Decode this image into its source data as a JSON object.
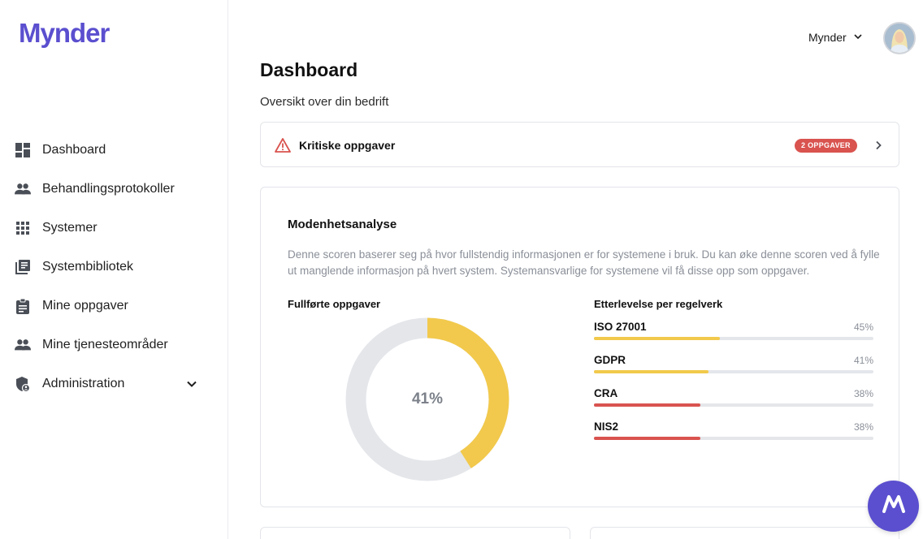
{
  "app": {
    "logo_text": "Mynder",
    "brand_color": "#5b4fcf"
  },
  "sidebar": {
    "items": [
      {
        "label": "Dashboard",
        "icon": "dashboard-icon"
      },
      {
        "label": "Behandlingsprotokoller",
        "icon": "people-icon"
      },
      {
        "label": "Systemer",
        "icon": "apps-grid-icon"
      },
      {
        "label": "Systembibliotek",
        "icon": "library-icon"
      },
      {
        "label": "Mine oppgaver",
        "icon": "clipboard-icon"
      },
      {
        "label": "Mine tjenesteområder",
        "icon": "people-icon"
      },
      {
        "label": "Administration",
        "icon": "admin-shield-icon",
        "expandable": true
      }
    ]
  },
  "header": {
    "user_menu_label": "Mynder",
    "avatar_icon": "user-avatar"
  },
  "page": {
    "title": "Dashboard",
    "subtitle": "Oversikt over din bedrift"
  },
  "critical": {
    "label": "Kritiske oppgaver",
    "badge": "2 OPPGAVER",
    "badge_color": "#d9534f",
    "icon": "warning-triangle-icon"
  },
  "maturity": {
    "title": "Modenhetsanalyse",
    "description": "Denne scoren baserer seg på hvor fullstendig informasjonen er for systemene i bruk. Du kan øke denne scoren ved å fylle ut manglende informasjon på hvert system. Systemansvarlige for systemene vil få disse opp som oppgaver.",
    "completed_title": "Fullførte oppgaver",
    "completed_value": 41,
    "completed_label": "41%",
    "donut_color": "#f2c94c",
    "track_color": "#e4e6ea",
    "compliance_title": "Etterlevelse per regelverk",
    "regulations": [
      {
        "name": "ISO 27001",
        "value": 45,
        "label": "45%",
        "color": "#f2c94c"
      },
      {
        "name": "GDPR",
        "value": 41,
        "label": "41%",
        "color": "#f2c94c"
      },
      {
        "name": "CRA",
        "value": 38,
        "label": "38%",
        "color": "#d9534f"
      },
      {
        "name": "NIS2",
        "value": 38,
        "label": "38%",
        "color": "#d9534f"
      }
    ]
  },
  "fab": {
    "icon": "mynder-logo-icon"
  }
}
